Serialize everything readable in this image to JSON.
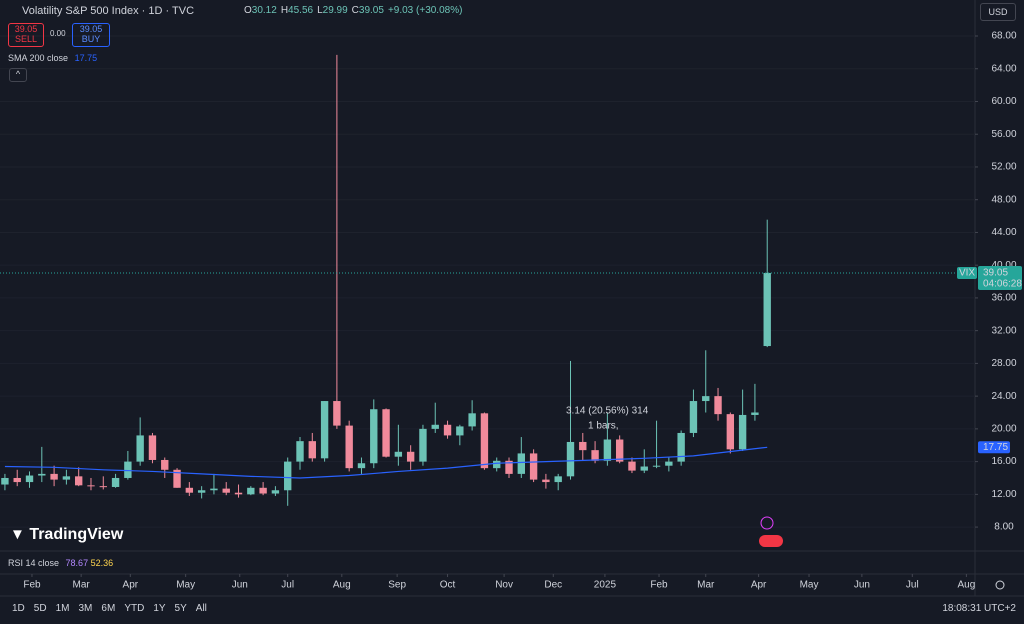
{
  "header": {
    "symbol": "Volatility S&P 500 Index · 1D · TVC",
    "ohlc_labels": [
      "O",
      "H",
      "L",
      "C"
    ],
    "change": "+9.03 (+30.08%)",
    "sell": "SELL",
    "buy": "BUY",
    "spread": "0.00",
    "currency": "USD",
    "logo": "TradingView"
  },
  "chart_data": {
    "type": "candlestick",
    "ylim": [
      5.2,
      72.4
    ],
    "yticks": [
      8,
      12,
      16,
      20,
      24,
      28,
      32,
      36,
      40,
      44,
      48,
      52,
      56,
      60,
      64,
      68
    ],
    "ytick_format": [
      {
        "value": 8,
        "label": "8.00"
      },
      {
        "value": 12,
        "label": "12.00"
      },
      {
        "value": 16,
        "label": "16.00"
      },
      {
        "value": 20,
        "label": "20.00"
      },
      {
        "value": 24,
        "label": "24.00"
      },
      {
        "value": 28,
        "label": "28.00"
      },
      {
        "value": 32,
        "label": "32.00"
      },
      {
        "value": 36,
        "label": "36.00"
      },
      {
        "value": 40,
        "label": "40.00"
      },
      {
        "value": 44,
        "label": "44.00"
      },
      {
        "value": 48,
        "label": "48.00"
      },
      {
        "value": 52,
        "label": "52.00"
      },
      {
        "value": 56,
        "label": "56.00"
      },
      {
        "value": 60,
        "label": "60.00"
      },
      {
        "value": 64,
        "label": "64.00"
      },
      {
        "value": 68,
        "label": "68.00"
      }
    ],
    "xlim": [
      -0.4,
      78.9
    ],
    "xticks": [
      {
        "value": 2.2,
        "label": "Feb"
      },
      {
        "value": 6.2,
        "label": "Mar"
      },
      {
        "value": 10.2,
        "label": "Apr"
      },
      {
        "value": 14.7,
        "label": "May"
      },
      {
        "value": 19.1,
        "label": "Jun"
      },
      {
        "value": 23,
        "label": "Jul"
      },
      {
        "value": 27.4,
        "label": "Aug"
      },
      {
        "value": 31.9,
        "label": "Sep"
      },
      {
        "value": 36,
        "label": "Oct"
      },
      {
        "value": 40.6,
        "label": "Nov"
      },
      {
        "value": 44.6,
        "label": "Dec"
      },
      {
        "value": 48.8,
        "label": "2025"
      },
      {
        "value": 53.2,
        "label": "Feb"
      },
      {
        "value": 57,
        "label": "Mar"
      },
      {
        "value": 61.3,
        "label": "Apr"
      },
      {
        "value": 65.4,
        "label": "May"
      },
      {
        "value": 69.7,
        "label": "Jun"
      },
      {
        "value": 73.8,
        "label": "Jul"
      },
      {
        "value": 78.2,
        "label": "Aug"
      }
    ],
    "up_color": "#6cc3b6",
    "down_color": "#f08a9b",
    "candles": {
      "name": "VIX",
      "x": [
        0,
        1,
        2,
        3,
        4,
        5,
        6,
        7,
        8,
        9,
        10,
        11,
        12,
        13,
        14,
        15,
        16,
        17,
        18,
        19,
        20,
        21,
        22,
        23,
        24,
        25,
        26,
        27,
        28,
        29,
        30,
        31,
        32,
        33,
        34,
        35,
        36,
        37,
        38,
        39,
        40,
        41,
        42,
        43,
        44,
        45,
        46,
        47,
        48,
        49,
        50,
        51,
        52,
        53,
        54,
        55,
        56,
        57,
        58,
        59,
        60,
        61,
        62
      ],
      "ohlc": [
        [
          13.2,
          14.5,
          12.5,
          14.0
        ],
        [
          14.0,
          15.0,
          13.0,
          13.5
        ],
        [
          13.5,
          14.8,
          12.8,
          14.3
        ],
        [
          14.3,
          17.8,
          13.5,
          14.5
        ],
        [
          14.5,
          15.5,
          13.0,
          13.8
        ],
        [
          13.8,
          15.0,
          13.2,
          14.2
        ],
        [
          14.2,
          15.3,
          13.0,
          13.1
        ],
        [
          13.1,
          14.0,
          12.5,
          13.0
        ],
        [
          13.0,
          14.2,
          12.6,
          12.9
        ],
        [
          12.9,
          14.5,
          12.8,
          14.0
        ],
        [
          14.0,
          17.3,
          13.8,
          16.0
        ],
        [
          16.0,
          21.4,
          15.5,
          19.2
        ],
        [
          19.2,
          19.5,
          15.8,
          16.2
        ],
        [
          16.2,
          16.5,
          14.0,
          15.0
        ],
        [
          15.0,
          15.2,
          12.8,
          12.8
        ],
        [
          12.8,
          13.5,
          11.8,
          12.2
        ],
        [
          12.2,
          13.0,
          11.5,
          12.5
        ],
        [
          12.5,
          14.5,
          12.0,
          12.7
        ],
        [
          12.7,
          13.5,
          11.9,
          12.2
        ],
        [
          12.2,
          13.2,
          11.6,
          12.0
        ],
        [
          12.0,
          13.0,
          11.9,
          12.8
        ],
        [
          12.8,
          13.5,
          11.9,
          12.1
        ],
        [
          12.1,
          13.0,
          11.8,
          12.5
        ],
        [
          12.5,
          16.5,
          10.6,
          16.0
        ],
        [
          16.0,
          19.0,
          15.0,
          18.5
        ],
        [
          18.5,
          19.5,
          16.0,
          16.4
        ],
        [
          16.4,
          23.4,
          16.0,
          23.4
        ],
        [
          23.4,
          65.7,
          20.0,
          20.4
        ],
        [
          20.4,
          21.0,
          14.8,
          15.2
        ],
        [
          15.2,
          16.5,
          14.5,
          15.8
        ],
        [
          15.8,
          23.6,
          15.2,
          22.4
        ],
        [
          22.4,
          22.5,
          16.5,
          16.6
        ],
        [
          16.6,
          20.5,
          15.5,
          17.2
        ],
        [
          17.2,
          18.0,
          15.0,
          16.0
        ],
        [
          16.0,
          20.5,
          15.5,
          20.0
        ],
        [
          20.0,
          23.2,
          19.5,
          20.5
        ],
        [
          20.5,
          21.0,
          18.8,
          19.2
        ],
        [
          19.2,
          20.5,
          18.0,
          20.3
        ],
        [
          20.3,
          23.5,
          19.8,
          21.9
        ],
        [
          21.9,
          22.0,
          15.0,
          15.2
        ],
        [
          15.2,
          16.5,
          14.8,
          16.1
        ],
        [
          16.1,
          16.5,
          14.0,
          14.5
        ],
        [
          14.5,
          19.0,
          14.0,
          17.0
        ],
        [
          17.0,
          17.5,
          13.5,
          13.8
        ],
        [
          13.8,
          14.5,
          12.7,
          13.5
        ],
        [
          13.5,
          14.5,
          12.5,
          14.2
        ],
        [
          14.2,
          28.3,
          13.8,
          18.4
        ],
        [
          18.4,
          19.5,
          16.2,
          17.4
        ],
        [
          17.4,
          18.5,
          15.8,
          16.1
        ],
        [
          16.1,
          22.0,
          15.5,
          18.7
        ],
        [
          18.7,
          19.2,
          15.8,
          16.0
        ],
        [
          16.0,
          16.5,
          14.6,
          14.9
        ],
        [
          14.9,
          17.5,
          14.6,
          15.4
        ],
        [
          15.4,
          21.0,
          15.2,
          15.5
        ],
        [
          15.5,
          16.5,
          14.8,
          16.0
        ],
        [
          16.0,
          19.8,
          15.5,
          19.5
        ],
        [
          19.5,
          24.8,
          19.0,
          23.4
        ],
        [
          23.4,
          29.6,
          22.0,
          24.0
        ],
        [
          24.0,
          25.0,
          21.0,
          21.8
        ],
        [
          21.8,
          22.0,
          17.0,
          17.5
        ],
        [
          17.5,
          24.8,
          17.3,
          21.7
        ],
        [
          21.7,
          25.5,
          21.0,
          22.0
        ],
        [
          30.12,
          45.56,
          29.99,
          39.05
        ]
      ]
    },
    "sma": {
      "name": "SMA 200 close",
      "color": "#2962ff",
      "x": [
        0,
        4,
        8,
        12,
        16,
        20,
        24,
        28,
        32,
        36,
        40,
        44,
        48,
        52,
        56,
        60,
        62
      ],
      "values": [
        15.4,
        15.3,
        15.0,
        14.8,
        14.5,
        14.2,
        14.0,
        14.3,
        14.8,
        15.2,
        15.8,
        16.0,
        16.2,
        16.4,
        16.7,
        17.4,
        17.75
      ]
    },
    "countdown": "04:06:28",
    "measure": [
      "3.14 (20.56%) 314",
      "1 bars,"
    ]
  },
  "rsi": {
    "name": "RSI 14 close",
    "values": [
      78.67,
      52.36
    ]
  },
  "toolbar": {
    "ranges": [
      "1D",
      "5D",
      "1M",
      "3M",
      "6M",
      "YTD",
      "1Y",
      "5Y",
      "All"
    ],
    "time": "18:08:31 UTC+2"
  }
}
